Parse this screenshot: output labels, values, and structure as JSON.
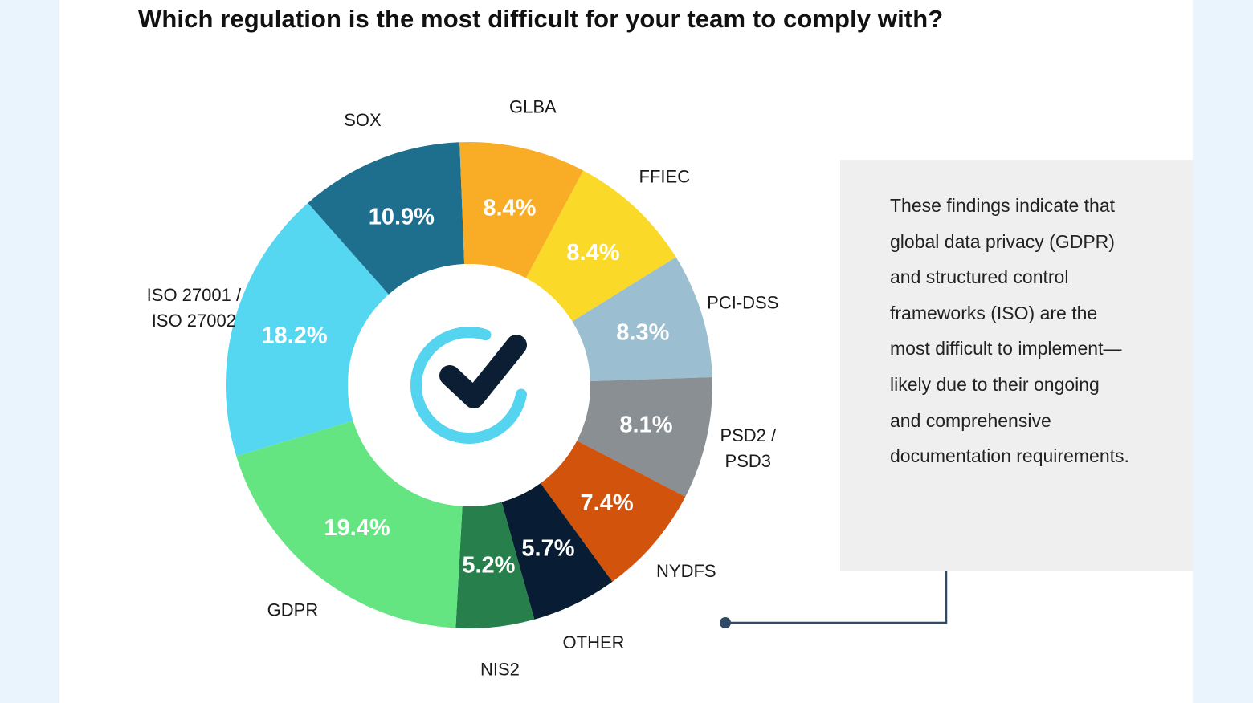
{
  "title": "Which regulation is the most difficult for your team to comply with?",
  "note": "These findings indicate that global data privacy (GDPR) and structured control frameworks (ISO) are the most difficult to implement—likely due to their ongoing and comprehensive documentation requirements.",
  "center_icon": "checkmark-circle-icon",
  "colors": {
    "background": "#eaf4fd",
    "note_box": "#efefef",
    "connector": "#2e4a66",
    "check_ring": "#55d4f0",
    "check_mark": "#0b1e33"
  },
  "chart_data": {
    "type": "pie",
    "donut": true,
    "title": "Which regulation is the most difficult for your team to comply with?",
    "legend": "none (labels placed outside slices)",
    "slices": [
      {
        "label": "ISO 27001 / ISO 27002",
        "label_lines": [
          "ISO 27001 /",
          "ISO 27002"
        ],
        "value": 18.2,
        "display": "18.2%",
        "color": "#55d6f1"
      },
      {
        "label": "SOX",
        "label_lines": [
          "SOX"
        ],
        "value": 10.9,
        "display": "10.9%",
        "color": "#1e6e8e"
      },
      {
        "label": "GLBA",
        "label_lines": [
          "GLBA"
        ],
        "value": 8.4,
        "display": "8.4%",
        "color": "#f9ad26"
      },
      {
        "label": "FFIEC",
        "label_lines": [
          "FFIEC"
        ],
        "value": 8.4,
        "display": "8.4%",
        "color": "#fbd928"
      },
      {
        "label": "PCI-DSS",
        "label_lines": [
          "PCI-DSS"
        ],
        "value": 8.3,
        "display": "8.3%",
        "color": "#9bbfd1"
      },
      {
        "label": "PSD2 / PSD3",
        "label_lines": [
          "PSD2 /",
          "PSD3"
        ],
        "value": 8.1,
        "display": "8.1%",
        "color": "#898f93"
      },
      {
        "label": "NYDFS",
        "label_lines": [
          "NYDFS"
        ],
        "value": 7.4,
        "display": "7.4%",
        "color": "#d1530c"
      },
      {
        "label": "OTHER",
        "label_lines": [
          "OTHER"
        ],
        "value": 5.7,
        "display": "5.7%",
        "color": "#081d33"
      },
      {
        "label": "NIS2",
        "label_lines": [
          "NIS2"
        ],
        "value": 5.2,
        "display": "5.2%",
        "color": "#277f4b"
      },
      {
        "label": "GDPR",
        "label_lines": [
          "GDPR"
        ],
        "value": 19.4,
        "display": "19.4%",
        "color": "#64e582"
      }
    ]
  }
}
